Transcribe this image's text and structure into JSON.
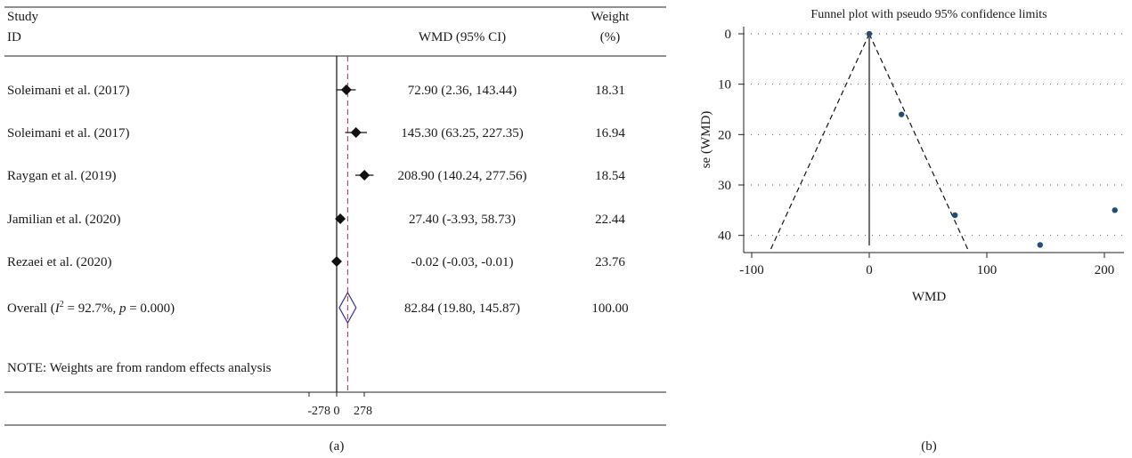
{
  "chart_data": [
    {
      "type": "forest",
      "panel_label": "(a)",
      "headers": {
        "study": "Study",
        "id": "ID",
        "effect": "WMD (95% CI)",
        "weight": "Weight",
        "weight_unit": "(%)"
      },
      "studies": [
        {
          "label": "Soleimani et al. (2017)",
          "wmd": 72.9,
          "lower": 2.36,
          "upper": 143.44,
          "ci_text": "72.90 (2.36, 143.44)",
          "weight": "18.31"
        },
        {
          "label": "Soleimani et al. (2017)",
          "wmd": 145.3,
          "lower": 63.25,
          "upper": 227.35,
          "ci_text": "145.30 (63.25, 227.35)",
          "weight": "16.94"
        },
        {
          "label": "Raygan et al. (2019)",
          "wmd": 208.9,
          "lower": 140.24,
          "upper": 277.56,
          "ci_text": "208.90 (140.24, 277.56)",
          "weight": "18.54"
        },
        {
          "label": "Jamilian et al. (2020)",
          "wmd": 27.4,
          "lower": -3.93,
          "upper": 58.73,
          "ci_text": "27.40 (-3.93, 58.73)",
          "weight": "22.44"
        },
        {
          "label": "Rezaei et al. (2020)",
          "wmd": -0.02,
          "lower": -0.03,
          "upper": -0.01,
          "ci_text": "-0.02 (-0.03, -0.01)",
          "weight": "23.76"
        }
      ],
      "overall": {
        "prefix": "Overall (",
        "i2_symbol": "I",
        "i2_sup": "2",
        "i2_value": " = 92.7%, ",
        "p_symbol": "p",
        "p_value": " = 0.000)",
        "wmd": 82.84,
        "lower": 19.8,
        "upper": 145.87,
        "ci_text": "82.84 (19.80, 145.87)",
        "weight": "100.00"
      },
      "note": "NOTE: Weights are from random effects analysis",
      "xlim": [
        -278,
        278
      ],
      "x_ticks": [
        -278,
        0,
        278
      ],
      "x_tick_labels": [
        "-278",
        "0",
        "278"
      ],
      "colors": {
        "marker": "#111111",
        "diamond": "#3c2a8f",
        "overall_line": "#a0304a"
      }
    },
    {
      "type": "scatter",
      "panel_label": "(b)",
      "title": "Funnel plot with pseudo 95% confidence limits",
      "xlabel": "WMD",
      "ylabel": "se (WMD)",
      "xlim": [
        -100,
        210
      ],
      "ylim": [
        0,
        42
      ],
      "y_reversed": true,
      "x_ticks": [
        -100,
        0,
        100,
        200
      ],
      "x_tick_labels": [
        "-100",
        "0",
        "100",
        "200"
      ],
      "y_ticks": [
        0,
        10,
        20,
        30,
        40
      ],
      "y_tick_labels": [
        "0",
        "10",
        "20",
        "30",
        "40"
      ],
      "grid": "dotted horizontal",
      "points": [
        {
          "x": -0.02,
          "y": 0.01
        },
        {
          "x": 27.4,
          "y": 16.0
        },
        {
          "x": 72.9,
          "y": 36.0
        },
        {
          "x": 145.3,
          "y": 41.9
        },
        {
          "x": 208.9,
          "y": 35.0
        }
      ],
      "pooled_estimate": 0,
      "colors": {
        "point": "#1f4e79"
      }
    }
  ]
}
